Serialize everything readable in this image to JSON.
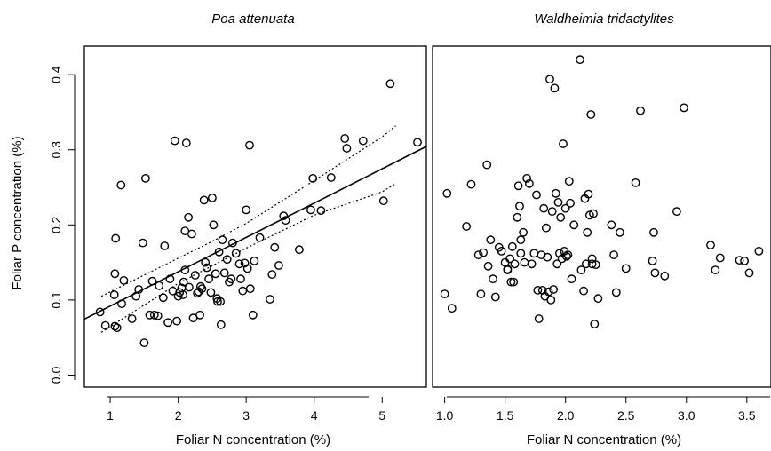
{
  "figure": {
    "ylabel": "Foliar P concentration (%)"
  },
  "chart_data": [
    {
      "type": "scatter",
      "title": "Poa attenuata",
      "xlabel": "Foliar N concentration (%)",
      "ylabel": "Foliar P concentration (%)",
      "xlim": [
        0.62,
        5.65
      ],
      "ylim": [
        -0.016,
        0.438
      ],
      "xticks": [
        1,
        2,
        3,
        4,
        5
      ],
      "xtick_labels": [
        "1",
        "2",
        "3",
        "4",
        "5"
      ],
      "yticks": [
        0.0,
        0.1,
        0.2,
        0.3,
        0.4
      ],
      "ytick_labels": [
        "0.0",
        "0.1",
        "0.2",
        "0.3",
        "0.4"
      ],
      "fit_line": {
        "intercept": 0.0462,
        "slope": 0.0457,
        "style": "solid"
      },
      "confidence_band": {
        "upper": [
          [
            0.87,
            0.105
          ],
          [
            2.5,
            0.178
          ],
          [
            3.0,
            0.202
          ],
          [
            4.0,
            0.259
          ],
          [
            5.0,
            0.317
          ],
          [
            5.2,
            0.332
          ]
        ],
        "lower": [
          [
            0.87,
            0.057
          ],
          [
            2.0,
            0.122
          ],
          [
            3.0,
            0.169
          ],
          [
            4.0,
            0.213
          ],
          [
            5.0,
            0.244
          ],
          [
            5.2,
            0.255
          ]
        ],
        "style": "dotted"
      },
      "points": [
        [
          0.85,
          0.084
        ],
        [
          0.93,
          0.066
        ],
        [
          1.06,
          0.107
        ],
        [
          1.07,
          0.135
        ],
        [
          1.07,
          0.065
        ],
        [
          1.08,
          0.182
        ],
        [
          1.1,
          0.063
        ],
        [
          1.16,
          0.253
        ],
        [
          1.17,
          0.095
        ],
        [
          1.2,
          0.126
        ],
        [
          1.32,
          0.075
        ],
        [
          1.38,
          0.105
        ],
        [
          1.42,
          0.114
        ],
        [
          1.48,
          0.176
        ],
        [
          1.5,
          0.043
        ],
        [
          1.52,
          0.262
        ],
        [
          1.58,
          0.08
        ],
        [
          1.62,
          0.125
        ],
        [
          1.65,
          0.08
        ],
        [
          1.7,
          0.079
        ],
        [
          1.72,
          0.119
        ],
        [
          1.78,
          0.103
        ],
        [
          1.8,
          0.172
        ],
        [
          1.85,
          0.07
        ],
        [
          1.88,
          0.128
        ],
        [
          1.92,
          0.112
        ],
        [
          1.95,
          0.312
        ],
        [
          1.98,
          0.072
        ],
        [
          2.0,
          0.105
        ],
        [
          2.02,
          0.11
        ],
        [
          2.05,
          0.116
        ],
        [
          2.07,
          0.107
        ],
        [
          2.08,
          0.124
        ],
        [
          2.1,
          0.192
        ],
        [
          2.1,
          0.14
        ],
        [
          2.12,
          0.309
        ],
        [
          2.15,
          0.21
        ],
        [
          2.16,
          0.117
        ],
        [
          2.2,
          0.188
        ],
        [
          2.22,
          0.076
        ],
        [
          2.25,
          0.133
        ],
        [
          2.28,
          0.109
        ],
        [
          2.3,
          0.111
        ],
        [
          2.32,
          0.08
        ],
        [
          2.33,
          0.118
        ],
        [
          2.35,
          0.115
        ],
        [
          2.38,
          0.233
        ],
        [
          2.4,
          0.15
        ],
        [
          2.42,
          0.143
        ],
        [
          2.45,
          0.128
        ],
        [
          2.48,
          0.11
        ],
        [
          2.5,
          0.236
        ],
        [
          2.52,
          0.2
        ],
        [
          2.55,
          0.135
        ],
        [
          2.57,
          0.102
        ],
        [
          2.58,
          0.098
        ],
        [
          2.6,
          0.164
        ],
        [
          2.62,
          0.098
        ],
        [
          2.63,
          0.067
        ],
        [
          2.65,
          0.18
        ],
        [
          2.68,
          0.136
        ],
        [
          2.72,
          0.154
        ],
        [
          2.75,
          0.124
        ],
        [
          2.78,
          0.128
        ],
        [
          2.8,
          0.176
        ],
        [
          2.85,
          0.162
        ],
        [
          2.9,
          0.148
        ],
        [
          2.92,
          0.128
        ],
        [
          2.95,
          0.112
        ],
        [
          2.98,
          0.149
        ],
        [
          3.0,
          0.22
        ],
        [
          3.02,
          0.142
        ],
        [
          3.05,
          0.306
        ],
        [
          3.06,
          0.115
        ],
        [
          3.1,
          0.08
        ],
        [
          3.12,
          0.152
        ],
        [
          3.2,
          0.183
        ],
        [
          3.35,
          0.101
        ],
        [
          3.38,
          0.134
        ],
        [
          3.42,
          0.17
        ],
        [
          3.48,
          0.146
        ],
        [
          3.55,
          0.212
        ],
        [
          3.58,
          0.206
        ],
        [
          3.78,
          0.167
        ],
        [
          3.95,
          0.22
        ],
        [
          3.98,
          0.262
        ],
        [
          4.1,
          0.219
        ],
        [
          4.25,
          0.263
        ],
        [
          4.45,
          0.315
        ],
        [
          4.48,
          0.302
        ],
        [
          4.72,
          0.312
        ],
        [
          5.02,
          0.232
        ],
        [
          5.12,
          0.388
        ],
        [
          5.52,
          0.31
        ]
      ]
    },
    {
      "type": "scatter",
      "title": "Waldheimia tridactylites",
      "xlabel": "Foliar N concentration (%)",
      "xlim": [
        0.9,
        3.7
      ],
      "ylim": [
        -0.016,
        0.438
      ],
      "xticks": [
        1.0,
        1.5,
        2.0,
        2.5,
        3.0,
        3.5
      ],
      "xtick_labels": [
        "1.0",
        "1.5",
        "2.0",
        "2.5",
        "3.0",
        "3.5"
      ],
      "points": [
        [
          1.0,
          0.108
        ],
        [
          1.02,
          0.242
        ],
        [
          1.06,
          0.089
        ],
        [
          1.18,
          0.198
        ],
        [
          1.22,
          0.254
        ],
        [
          1.28,
          0.16
        ],
        [
          1.3,
          0.108
        ],
        [
          1.32,
          0.163
        ],
        [
          1.35,
          0.28
        ],
        [
          1.36,
          0.145
        ],
        [
          1.38,
          0.18
        ],
        [
          1.4,
          0.128
        ],
        [
          1.42,
          0.104
        ],
        [
          1.45,
          0.17
        ],
        [
          1.47,
          0.165
        ],
        [
          1.5,
          0.15
        ],
        [
          1.52,
          0.14
        ],
        [
          1.52,
          0.141
        ],
        [
          1.54,
          0.155
        ],
        [
          1.55,
          0.124
        ],
        [
          1.56,
          0.171
        ],
        [
          1.57,
          0.124
        ],
        [
          1.58,
          0.148
        ],
        [
          1.6,
          0.21
        ],
        [
          1.61,
          0.252
        ],
        [
          1.62,
          0.225
        ],
        [
          1.63,
          0.18
        ],
        [
          1.63,
          0.162
        ],
        [
          1.65,
          0.19
        ],
        [
          1.66,
          0.15
        ],
        [
          1.68,
          0.262
        ],
        [
          1.7,
          0.255
        ],
        [
          1.72,
          0.148
        ],
        [
          1.74,
          0.162
        ],
        [
          1.76,
          0.24
        ],
        [
          1.77,
          0.113
        ],
        [
          1.78,
          0.075
        ],
        [
          1.8,
          0.16
        ],
        [
          1.81,
          0.113
        ],
        [
          1.82,
          0.222
        ],
        [
          1.83,
          0.105
        ],
        [
          1.84,
          0.196
        ],
        [
          1.85,
          0.157
        ],
        [
          1.86,
          0.111
        ],
        [
          1.87,
          0.394
        ],
        [
          1.88,
          0.1
        ],
        [
          1.89,
          0.218
        ],
        [
          1.9,
          0.114
        ],
        [
          1.91,
          0.382
        ],
        [
          1.92,
          0.242
        ],
        [
          1.93,
          0.148
        ],
        [
          1.94,
          0.23
        ],
        [
          1.95,
          0.162
        ],
        [
          1.96,
          0.21
        ],
        [
          1.97,
          0.155
        ],
        [
          1.98,
          0.308
        ],
        [
          1.99,
          0.165
        ],
        [
          2.0,
          0.222
        ],
        [
          2.01,
          0.158
        ],
        [
          2.02,
          0.16
        ],
        [
          2.03,
          0.258
        ],
        [
          2.04,
          0.229
        ],
        [
          2.05,
          0.128
        ],
        [
          2.07,
          0.2
        ],
        [
          2.12,
          0.42
        ],
        [
          2.13,
          0.14
        ],
        [
          2.15,
          0.112
        ],
        [
          2.16,
          0.235
        ],
        [
          2.17,
          0.148
        ],
        [
          2.18,
          0.19
        ],
        [
          2.19,
          0.241
        ],
        [
          2.2,
          0.213
        ],
        [
          2.21,
          0.347
        ],
        [
          2.22,
          0.148
        ],
        [
          2.22,
          0.155
        ],
        [
          2.23,
          0.215
        ],
        [
          2.24,
          0.068
        ],
        [
          2.25,
          0.147
        ],
        [
          2.27,
          0.102
        ],
        [
          2.38,
          0.2
        ],
        [
          2.4,
          0.16
        ],
        [
          2.42,
          0.11
        ],
        [
          2.45,
          0.19
        ],
        [
          2.5,
          0.142
        ],
        [
          2.58,
          0.256
        ],
        [
          2.62,
          0.352
        ],
        [
          2.72,
          0.152
        ],
        [
          2.73,
          0.19
        ],
        [
          2.74,
          0.136
        ],
        [
          2.82,
          0.132
        ],
        [
          2.92,
          0.218
        ],
        [
          2.98,
          0.356
        ],
        [
          3.2,
          0.173
        ],
        [
          3.24,
          0.14
        ],
        [
          3.28,
          0.156
        ],
        [
          3.44,
          0.153
        ],
        [
          3.48,
          0.152
        ],
        [
          3.52,
          0.136
        ],
        [
          3.6,
          0.165
        ]
      ]
    }
  ]
}
